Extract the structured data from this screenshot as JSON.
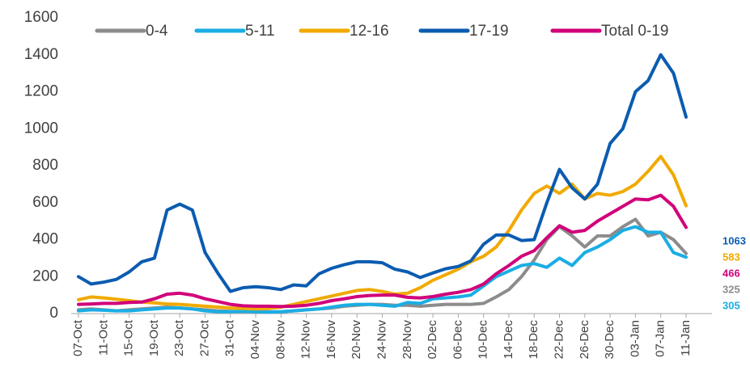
{
  "chart_data": {
    "type": "line",
    "categories": [
      "07-Oct",
      null,
      "11-Oct",
      null,
      "15-Oct",
      null,
      "19-Oct",
      null,
      "23-Oct",
      null,
      "27-Oct",
      null,
      "31-Oct",
      null,
      "04-Nov",
      null,
      "08-Nov",
      null,
      "12-Nov",
      null,
      "16-Nov",
      null,
      "20-Nov",
      null,
      "24-Nov",
      null,
      "28-Nov",
      null,
      "02-Dec",
      null,
      "06-Dec",
      null,
      "10-Dec",
      null,
      "14-Dec",
      null,
      "18-Dec",
      null,
      "22-Dec",
      null,
      "26-Dec",
      null,
      "30-Dec",
      null,
      "03-Jan",
      null,
      "07-Jan",
      null,
      "11-Jan"
    ],
    "series": [
      {
        "name": "0-4",
        "color": "#8c8c8c",
        "values": [
          20,
          25,
          20,
          15,
          20,
          25,
          30,
          35,
          30,
          25,
          20,
          15,
          12,
          10,
          10,
          10,
          10,
          15,
          20,
          25,
          30,
          40,
          45,
          50,
          50,
          45,
          45,
          40,
          45,
          50,
          50,
          50,
          55,
          90,
          130,
          200,
          290,
          400,
          470,
          420,
          360,
          420,
          420,
          470,
          510,
          420,
          440,
          400,
          325
        ]
      },
      {
        "name": "5-11",
        "color": "#1aade4",
        "values": [
          15,
          20,
          18,
          15,
          15,
          20,
          25,
          30,
          30,
          25,
          15,
          10,
          10,
          12,
          10,
          8,
          10,
          15,
          20,
          25,
          35,
          45,
          50,
          50,
          45,
          40,
          60,
          55,
          80,
          85,
          90,
          100,
          150,
          200,
          230,
          260,
          270,
          250,
          300,
          260,
          330,
          360,
          400,
          450,
          470,
          440,
          440,
          330,
          305
        ]
      },
      {
        "name": "12-16",
        "color": "#f0aa00",
        "values": [
          75,
          90,
          85,
          78,
          70,
          62,
          58,
          52,
          50,
          45,
          40,
          35,
          30,
          28,
          25,
          28,
          35,
          50,
          65,
          80,
          95,
          110,
          125,
          130,
          120,
          105,
          110,
          140,
          180,
          210,
          240,
          280,
          310,
          360,
          450,
          560,
          650,
          690,
          650,
          700,
          620,
          650,
          640,
          660,
          700,
          770,
          850,
          750,
          583
        ]
      },
      {
        "name": "17-19",
        "color": "#0b5cb0",
        "values": [
          200,
          160,
          170,
          185,
          225,
          280,
          300,
          560,
          592,
          560,
          330,
          220,
          120,
          140,
          145,
          140,
          130,
          155,
          150,
          215,
          245,
          265,
          280,
          280,
          275,
          240,
          225,
          195,
          220,
          242,
          255,
          285,
          375,
          425,
          425,
          395,
          400,
          600,
          780,
          680,
          620,
          700,
          920,
          1000,
          1200,
          1260,
          1400,
          1300,
          1063
        ]
      },
      {
        "name": "Total 0-19",
        "color": "#d1007a",
        "values": [
          50,
          52,
          55,
          55,
          60,
          62,
          80,
          105,
          110,
          100,
          80,
          65,
          50,
          42,
          40,
          40,
          38,
          40,
          45,
          55,
          70,
          80,
          92,
          98,
          100,
          100,
          88,
          85,
          92,
          105,
          115,
          130,
          160,
          215,
          260,
          310,
          340,
          410,
          475,
          440,
          450,
          500,
          540,
          580,
          620,
          615,
          640,
          580,
          466
        ]
      }
    ],
    "ylim": [
      0,
      1600
    ],
    "yticks": [
      0,
      200,
      400,
      600,
      800,
      1000,
      1200,
      1400,
      1600
    ],
    "legend": "top"
  }
}
